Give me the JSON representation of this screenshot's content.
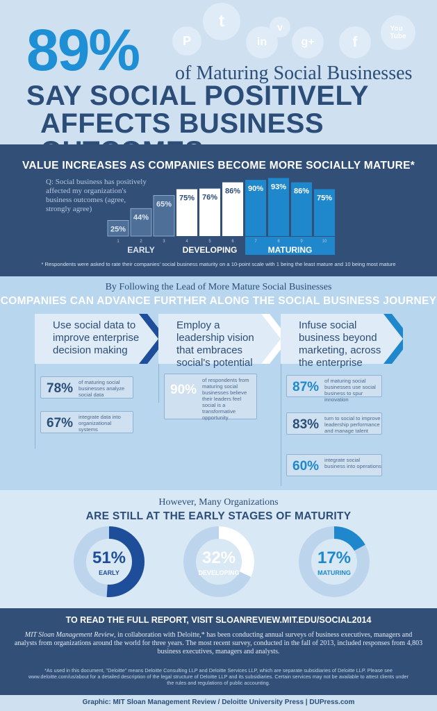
{
  "header": {
    "big_pct": "89%",
    "big_sub": "of Maturing Social Businesses",
    "headline1": "SAY SOCIAL POSITIVELY",
    "headline2": "AFFECTS BUSINESS OUTCOMES",
    "social_icons": [
      "pinterest-icon",
      "twitter-icon",
      "vimeo-icon",
      "linkedin-icon",
      "googleplus-icon",
      "facebook-icon",
      "youtube-icon"
    ]
  },
  "value": {
    "title": "VALUE INCREASES AS COMPANIES BECOME MORE SOCIALLY MATURE*",
    "question": "Q: Social business has positively affected my organization's business outcomes (agree, strongly agree)",
    "note": "* Respondents were asked to rate their companies' social business maturity on a 10-point scale with 1 being the least mature and 10 being most mature"
  },
  "chart_data": {
    "type": "bar",
    "categories": [
      "1",
      "2",
      "3",
      "4",
      "5",
      "6",
      "7",
      "8",
      "9",
      "10"
    ],
    "values": [
      25,
      44,
      65,
      75,
      76,
      86,
      90,
      93,
      86,
      75
    ],
    "value_labels": [
      "25%",
      "44%",
      "65%",
      "75%",
      "76%",
      "86%",
      "90%",
      "93%",
      "86%",
      "75%"
    ],
    "groups": [
      {
        "label": "EARLY",
        "categories": [
          "1",
          "2",
          "3"
        ],
        "color": "#8aa9cc"
      },
      {
        "label": "DEVELOPING",
        "categories": [
          "4",
          "5",
          "6"
        ],
        "color": "#ffffff"
      },
      {
        "label": "MATURING",
        "categories": [
          "7",
          "8",
          "9",
          "10"
        ],
        "color": "#1f88cc"
      }
    ]
  },
  "follow": {
    "subtitle": "By Following the Lead of More Mature Social Businesses",
    "title": "COMPANIES CAN ADVANCE FURTHER ALONG THE SOCIAL BUSINESS JOURNEY",
    "steps": [
      {
        "text": "Use social data to improve enterprise decision making"
      },
      {
        "text": "Employ a leadership vision that embraces social's potential"
      },
      {
        "text": "Infuse social business beyond marketing, across the enterprise"
      }
    ],
    "stats": [
      {
        "pct": "78%",
        "text": "of maturing social businesses analyze social data"
      },
      {
        "pct": "67%",
        "text": "integrate data into organizational systems"
      },
      {
        "pct": "90%",
        "text": "of respondents from maturing social businesses believe their leaders feel social is a transformative opportunity"
      },
      {
        "pct": "87%",
        "text": "of maturing social businesses use social business to spur innovation"
      },
      {
        "pct": "83%",
        "text": "turn to social to improve leadership performance and manage talent"
      },
      {
        "pct": "60%",
        "text": "integrate social business into operations"
      }
    ]
  },
  "early": {
    "subtitle": "However, Many Organizations",
    "title": "ARE STILL AT THE EARLY STAGES OF MATURITY",
    "donuts": [
      {
        "pct": "51%",
        "value": 51,
        "label": "EARLY",
        "color": "#1e4d99"
      },
      {
        "pct": "32%",
        "value": 32,
        "label": "DEVELOPING",
        "color": "#ffffff"
      },
      {
        "pct": "17%",
        "value": 17,
        "label": "MATURING",
        "color": "#1f88cc"
      }
    ]
  },
  "footer": {
    "link": "TO READ THE FULL REPORT, VISIT SLOANREVIEW.MIT.EDU/SOCIAL2014",
    "about_em": "MIT Sloan Management Review",
    "about": ", in collaboration with Deloitte,* has been conducting annual surveys of business executives, managers and analysts from organizations around the world for three years. The most recent survey, conducted in the fall of 2013, included responses from 4,803 business executives, managers and analysts.",
    "note": "*As used in this document, \"Deloitte\" means Deloitte Consulting LLP and Deloitte Services LLP, which are separate subsidiaries of Deloitte LLP. Please see www.deloitte.com/us/about for a detailed description of the legal structure of Deloitte LLP and its subsidiaries. Certain services may not be available to attest clients under the rules and regulations of public accounting.",
    "credit": "Graphic: MIT Sloan Management Review / Deloitte University Press  |  DUPress.com"
  }
}
